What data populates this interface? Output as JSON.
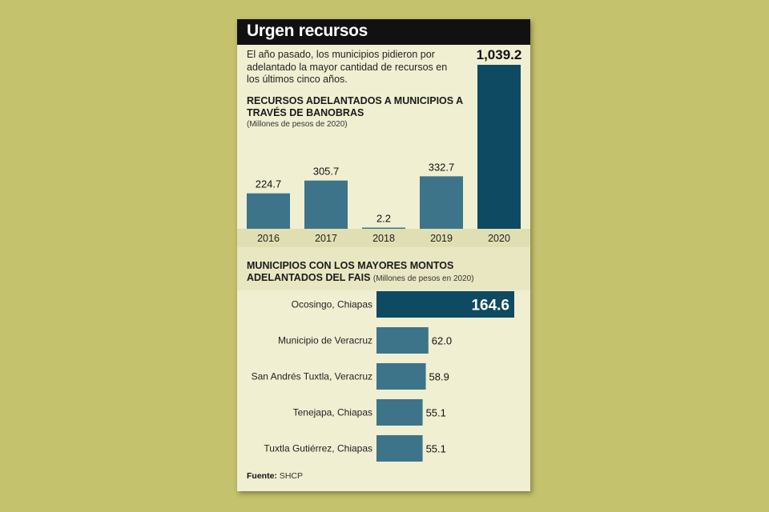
{
  "title": "Urgen recursos",
  "intro": "El año pasado, los municipios pidieron por adelantado la mayor cantidad de recursos en los últimos cinco años.",
  "colors": {
    "background": "#c4c26c",
    "card": "#f0efd2",
    "bar": "#3d7489",
    "bar_highlight": "#0e4a61",
    "axis_band": "#e0dfb3"
  },
  "chart_data": [
    {
      "type": "bar",
      "title": "RECURSOS ADELANTADOS A MUNICIPIOS A TRAVÉS DE BANOBRAS",
      "subtitle": "(Millones de pesos de 2020)",
      "categories": [
        "2016",
        "2017",
        "2018",
        "2019",
        "2020"
      ],
      "values": [
        224.7,
        305.7,
        2.2,
        332.7,
        1039.2
      ],
      "value_labels": [
        "224.7",
        "305.7",
        "2.2",
        "332.7",
        "1,039.2"
      ],
      "highlight_index": 4,
      "grid": false
    },
    {
      "type": "bar",
      "orientation": "horizontal",
      "title": "MUNICIPIOS CON LOS MAYORES MONTOS ADELANTADOS DEL FAIS",
      "subtitle": "(Millones de pesos en 2020)",
      "categories": [
        "Ocosingo, Chiapas",
        "Municipio de Veracruz",
        "San Andrés Tuxtla, Veracruz",
        "Tenejapa, Chiapas",
        "Tuxtla Gutiérrez, Chiapas"
      ],
      "values": [
        164.6,
        62.0,
        58.9,
        55.1,
        55.1
      ],
      "value_labels": [
        "164.6",
        "62.0",
        "58.9",
        "55.1",
        "55.1"
      ],
      "highlight_index": 0,
      "grid": false
    }
  ],
  "source": {
    "label": "Fuente:",
    "text": "SHCP"
  }
}
